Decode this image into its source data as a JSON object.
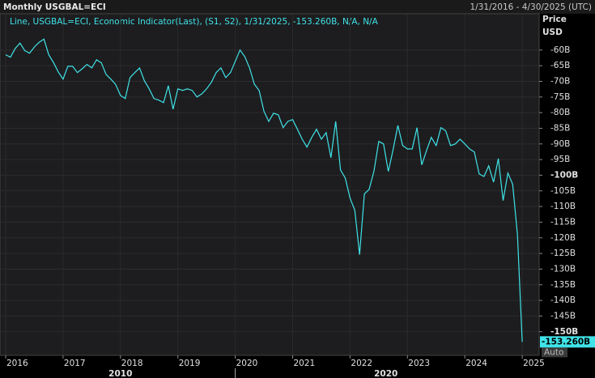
{
  "chart_data": {
    "type": "line",
    "title": "Monthly USGBAL=ECI",
    "range_label": "1/31/2016 - 4/30/2025 (UTC)",
    "y_label": "Price",
    "y_unit": "USD",
    "x": [
      "1/31/2016",
      "2/29/2016",
      "3/31/2016",
      "4/30/2016",
      "5/31/2016",
      "6/30/2016",
      "7/31/2016",
      "8/31/2016",
      "9/30/2016",
      "10/31/2016",
      "11/30/2016",
      "12/31/2016",
      "1/31/2017",
      "2/28/2017",
      "3/31/2017",
      "4/30/2017",
      "5/31/2017",
      "6/30/2017",
      "7/31/2017",
      "8/31/2017",
      "9/30/2017",
      "10/31/2017",
      "11/30/2017",
      "12/31/2017",
      "1/31/2018",
      "2/28/2018",
      "3/31/2018",
      "4/30/2018",
      "5/31/2018",
      "6/30/2018",
      "7/31/2018",
      "8/31/2018",
      "9/30/2018",
      "10/31/2018",
      "11/30/2018",
      "12/31/2018",
      "1/31/2019",
      "2/28/2019",
      "3/31/2019",
      "4/30/2019",
      "5/31/2019",
      "6/30/2019",
      "7/31/2019",
      "8/31/2019",
      "9/30/2019",
      "10/31/2019",
      "11/30/2019",
      "12/31/2019",
      "1/31/2020",
      "2/29/2020",
      "3/31/2020",
      "4/30/2020",
      "5/31/2020",
      "6/30/2020",
      "7/31/2020",
      "8/31/2020",
      "9/30/2020",
      "10/31/2020",
      "11/30/2020",
      "12/31/2020",
      "1/31/2021",
      "2/28/2021",
      "3/31/2021",
      "4/30/2021",
      "5/31/2021",
      "6/30/2021",
      "7/31/2021",
      "8/31/2021",
      "9/30/2021",
      "10/31/2021",
      "11/30/2021",
      "12/31/2021",
      "1/31/2022",
      "2/28/2022",
      "3/31/2022",
      "4/30/2022",
      "5/31/2022",
      "6/30/2022",
      "7/31/2022",
      "8/31/2022",
      "9/30/2022",
      "10/31/2022",
      "11/30/2022",
      "12/31/2022",
      "1/31/2023",
      "2/28/2023",
      "3/31/2023",
      "4/30/2023",
      "5/31/2023",
      "6/30/2023",
      "7/31/2023",
      "8/31/2023",
      "9/30/2023",
      "10/31/2023",
      "11/30/2023",
      "12/31/2023",
      "1/31/2024",
      "2/29/2024",
      "3/31/2024",
      "4/30/2024",
      "5/31/2024",
      "6/30/2024",
      "7/31/2024",
      "8/31/2024",
      "9/30/2024",
      "10/31/2024",
      "11/30/2024",
      "12/31/2024",
      "1/31/2025"
    ],
    "series": [
      {
        "name": "Line, USGBAL=ECI, Economic Indicator(Last), (S1, S2), 1/31/2025, -153.260B, N/A, N/A",
        "color": "#3fe3e8",
        "values": [
          -61.5,
          -62.3,
          -59.5,
          -57.8,
          -60.2,
          -61,
          -59,
          -57.5,
          -56.5,
          -61.5,
          -64,
          -67,
          -69.3,
          -65.2,
          -65.2,
          -67.2,
          -66,
          -64.6,
          -65.7,
          -63.1,
          -64.1,
          -67.8,
          -69.3,
          -71,
          -74.5,
          -75.5,
          -68.8,
          -67.2,
          -65.7,
          -69.8,
          -72.4,
          -75.5,
          -76,
          -76.8,
          -71.4,
          -78.9,
          -72.4,
          -72.9,
          -72.4,
          -72.9,
          -75,
          -74,
          -72.4,
          -70.3,
          -67.2,
          -65.7,
          -68.8,
          -67.2,
          -63.6,
          -60,
          -62.1,
          -65.7,
          -70.9,
          -72.9,
          -79.6,
          -82.8,
          -80.2,
          -80.7,
          -84.8,
          -82.8,
          -82.2,
          -85.3,
          -88.5,
          -91,
          -87.9,
          -85.3,
          -88.5,
          -86.4,
          -94.4,
          -82.8,
          -98.3,
          -100.9,
          -107.3,
          -111.2,
          -125.4,
          -106,
          -104.5,
          -98.8,
          -89.2,
          -90,
          -98.8,
          -91.8,
          -84.1,
          -90.5,
          -91.6,
          -91.6,
          -84.8,
          -96.7,
          -92.1,
          -87.9,
          -90.5,
          -84.8,
          -85.8,
          -90.5,
          -90,
          -88.5,
          -90,
          -91.6,
          -92.6,
          -99.6,
          -100.4,
          -97,
          -102.2,
          -94.7,
          -108.1,
          -99.3,
          -102.9,
          -119,
          -153.26
        ]
      }
    ],
    "last_label": {
      "value": -153.26,
      "label": "-153.260B"
    },
    "xlim": [
      "1/31/2016",
      "4/30/2025"
    ],
    "xticks": [
      2016,
      2017,
      2018,
      2019,
      2020,
      2021,
      2022,
      2023,
      2024,
      2025
    ],
    "x_decade_labels": [
      {
        "value": 2010,
        "label": "2010"
      },
      {
        "value": 2020,
        "label": "2020"
      }
    ],
    "ylim": [
      -157.3,
      -48.4
    ],
    "yticks": [
      {
        "value": -60,
        "label": "-60B"
      },
      {
        "value": -65,
        "label": "-65B"
      },
      {
        "value": -70,
        "label": "-70B"
      },
      {
        "value": -75,
        "label": "-75B"
      },
      {
        "value": -80,
        "label": "-80B"
      },
      {
        "value": -85,
        "label": "-85B"
      },
      {
        "value": -90,
        "label": "-90B"
      },
      {
        "value": -95,
        "label": "-95B"
      },
      {
        "value": -100,
        "label": "-100B"
      },
      {
        "value": -105,
        "label": "-105B"
      },
      {
        "value": -110,
        "label": "-110B"
      },
      {
        "value": -115,
        "label": "-115B"
      },
      {
        "value": -120,
        "label": "-120B"
      },
      {
        "value": -125,
        "label": "-125B"
      },
      {
        "value": -130,
        "label": "-130B"
      },
      {
        "value": -135,
        "label": "-135B"
      },
      {
        "value": -140,
        "label": "-140B"
      },
      {
        "value": -145,
        "label": "-145B"
      },
      {
        "value": -150,
        "label": "-150B"
      }
    ],
    "grid": true,
    "auto_button": "Auto"
  }
}
